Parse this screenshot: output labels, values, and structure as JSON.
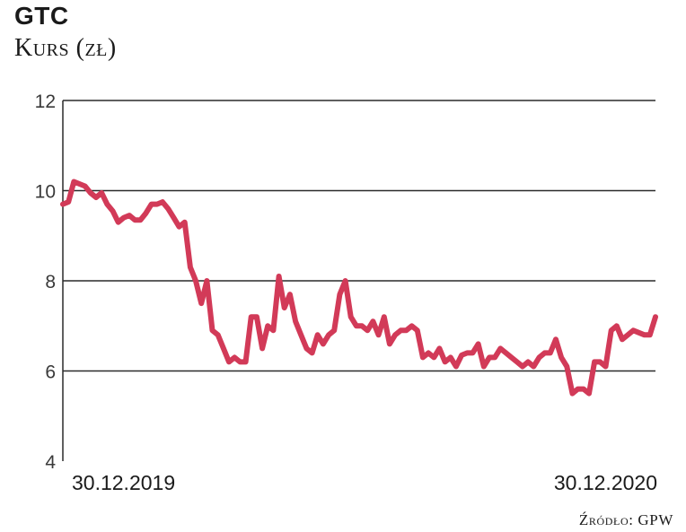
{
  "chart_data": {
    "type": "line",
    "title": "GTC",
    "ylabel": "Kurs (zł)",
    "ylim": [
      4,
      12
    ],
    "yticks": [
      4,
      6,
      8,
      10,
      12
    ],
    "grid": true,
    "x_range": [
      "30.12.2019",
      "30.12.2020"
    ],
    "x_tick_labels": [
      "30.12.2019",
      "30.12.2020"
    ],
    "series_color": "#d23a58",
    "series": [
      {
        "values": [
          9.7,
          9.75,
          10.2,
          10.15,
          10.1,
          9.95,
          9.85,
          9.95,
          9.7,
          9.55,
          9.3,
          9.4,
          9.45,
          9.35,
          9.35,
          9.5,
          9.7,
          9.7,
          9.75,
          9.6,
          9.4,
          9.2,
          9.3,
          8.3,
          8.0,
          7.5,
          8.0,
          6.9,
          6.8,
          6.5,
          6.2,
          6.3,
          6.2,
          6.2,
          7.2,
          7.2,
          6.5,
          7.0,
          6.9,
          8.1,
          7.4,
          7.7,
          7.1,
          6.8,
          6.5,
          6.4,
          6.8,
          6.6,
          6.8,
          6.9,
          7.7,
          8.0,
          7.2,
          7.0,
          7.0,
          6.9,
          7.1,
          6.8,
          7.2,
          6.6,
          6.8,
          6.9,
          6.9,
          7.0,
          6.9,
          6.3,
          6.4,
          6.3,
          6.5,
          6.2,
          6.3,
          6.1,
          6.35,
          6.4,
          6.4,
          6.6,
          6.1,
          6.3,
          6.3,
          6.5,
          6.4,
          6.3,
          6.2,
          6.1,
          6.2,
          6.1,
          6.3,
          6.4,
          6.4,
          6.7,
          6.3,
          6.1,
          5.5,
          5.6,
          5.6,
          5.5,
          6.2,
          6.2,
          6.1,
          6.9,
          7.0,
          6.7,
          6.8,
          6.9,
          6.85,
          6.8,
          6.8,
          7.2
        ]
      }
    ]
  },
  "source": "Źródło: GPW"
}
